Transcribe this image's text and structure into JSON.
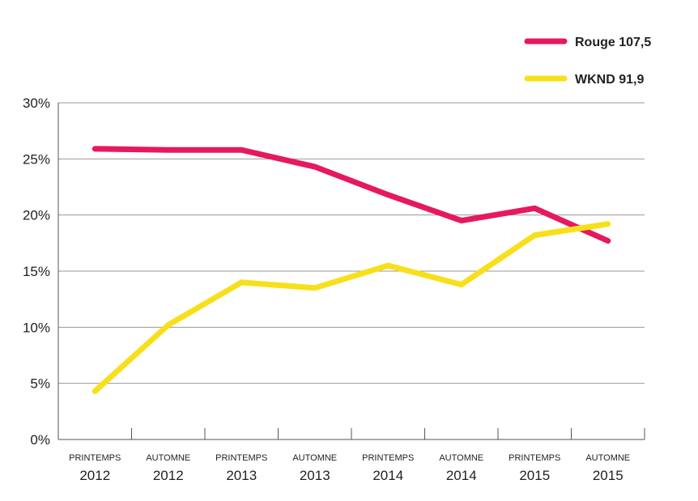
{
  "chart_data": {
    "type": "line",
    "categories": [
      [
        "PRINTEMPS",
        "2012"
      ],
      [
        "AUTOMNE",
        "2012"
      ],
      [
        "PRINTEMPS",
        "2013"
      ],
      [
        "AUTOMNE",
        "2013"
      ],
      [
        "PRINTEMPS",
        "2014"
      ],
      [
        "AUTOMNE",
        "2014"
      ],
      [
        "PRINTEMPS",
        "2015"
      ],
      [
        "AUTOMNE",
        "2015"
      ]
    ],
    "series": [
      {
        "name": "Rouge 107,5",
        "color": "#e5195b",
        "values": [
          25.9,
          25.8,
          25.8,
          24.3,
          21.8,
          19.5,
          20.6,
          17.7
        ]
      },
      {
        "name": "WKND 91,9",
        "color": "#f7e01b",
        "values": [
          4.3,
          10.2,
          14.0,
          13.5,
          15.5,
          13.8,
          18.2,
          19.2
        ]
      }
    ],
    "ylim": [
      0,
      30
    ],
    "yticks": [
      0,
      5,
      10,
      15,
      20,
      25,
      30
    ],
    "ytick_labels": [
      "0%",
      "5%",
      "10%",
      "15%",
      "20%",
      "25%",
      "30%"
    ],
    "grid": true,
    "legend_position": "top-right",
    "title": "",
    "xlabel": "",
    "ylabel": ""
  }
}
